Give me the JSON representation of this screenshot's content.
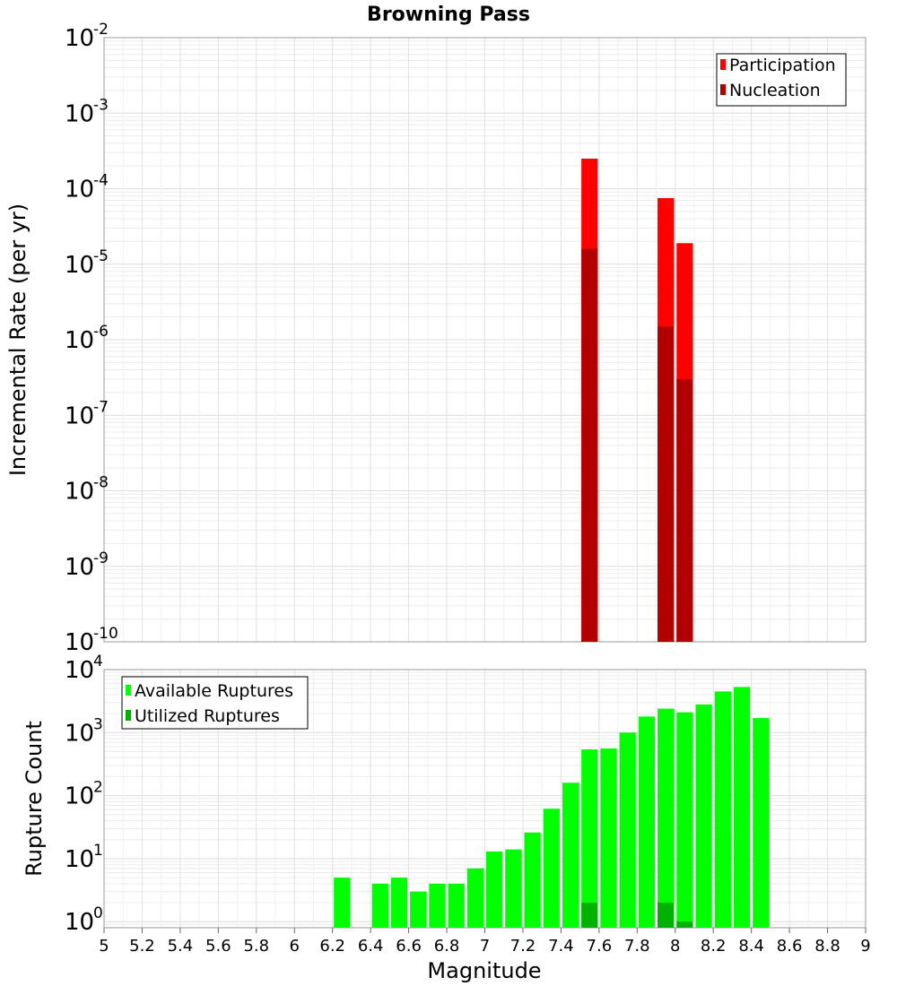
{
  "title": "Browning Pass",
  "xlabel": "Magnitude",
  "chart_data": [
    {
      "type": "bar",
      "panel": "top",
      "ylabel": "Incremental Rate (per yr)",
      "yscale": "log",
      "ylim": [
        1e-10,
        0.01
      ],
      "xlim": [
        5,
        9
      ],
      "y_tick_exponents": [
        "-10",
        "-9",
        "-8",
        "-7",
        "-6",
        "-5",
        "-4",
        "-3",
        "-2"
      ],
      "legend": {
        "position": "top-right",
        "entries": [
          "Participation",
          "Nucleation"
        ]
      },
      "series": [
        {
          "name": "Participation",
          "color": "#ff0000",
          "x": [
            7.55,
            7.95,
            8.05
          ],
          "values": [
            0.00025,
            7.5e-05,
            1.9e-05
          ]
        },
        {
          "name": "Nucleation",
          "color": "#b20000",
          "x": [
            7.55,
            7.95,
            8.05
          ],
          "values": [
            1.6e-05,
            1.5e-06,
            3e-07
          ]
        }
      ]
    },
    {
      "type": "bar",
      "panel": "bottom",
      "ylabel": "Rupture Count",
      "yscale": "log",
      "ylim": [
        0.8,
        10000
      ],
      "xlim": [
        5,
        9
      ],
      "y_tick_exponents": [
        "0",
        "1",
        "2",
        "3",
        "4"
      ],
      "legend": {
        "position": "top-left",
        "entries": [
          "Available Ruptures",
          "Utilized Ruptures"
        ]
      },
      "series": [
        {
          "name": "Available Ruptures",
          "color": "#00ff00",
          "x": [
            6.25,
            6.45,
            6.55,
            6.65,
            6.75,
            6.85,
            6.95,
            7.05,
            7.15,
            7.25,
            7.35,
            7.45,
            7.55,
            7.65,
            7.75,
            7.85,
            7.95,
            8.05,
            8.15,
            8.25,
            8.35,
            8.45
          ],
          "values": [
            5,
            4,
            5,
            3,
            4,
            4,
            7,
            13,
            14,
            26,
            62,
            160,
            540,
            560,
            1000,
            1800,
            2400,
            2100,
            2800,
            4500,
            5300,
            1700
          ]
        },
        {
          "name": "Utilized Ruptures",
          "color": "#00b200",
          "x": [
            7.55,
            7.95,
            8.05
          ],
          "values": [
            2,
            2,
            1
          ]
        }
      ]
    }
  ],
  "x_ticks": [
    "5",
    "5.2",
    "5.4",
    "5.6",
    "5.8",
    "6",
    "6.2",
    "6.4",
    "6.6",
    "6.8",
    "7",
    "7.2",
    "7.4",
    "7.6",
    "7.8",
    "8",
    "8.2",
    "8.4",
    "8.6",
    "8.8",
    "9"
  ]
}
